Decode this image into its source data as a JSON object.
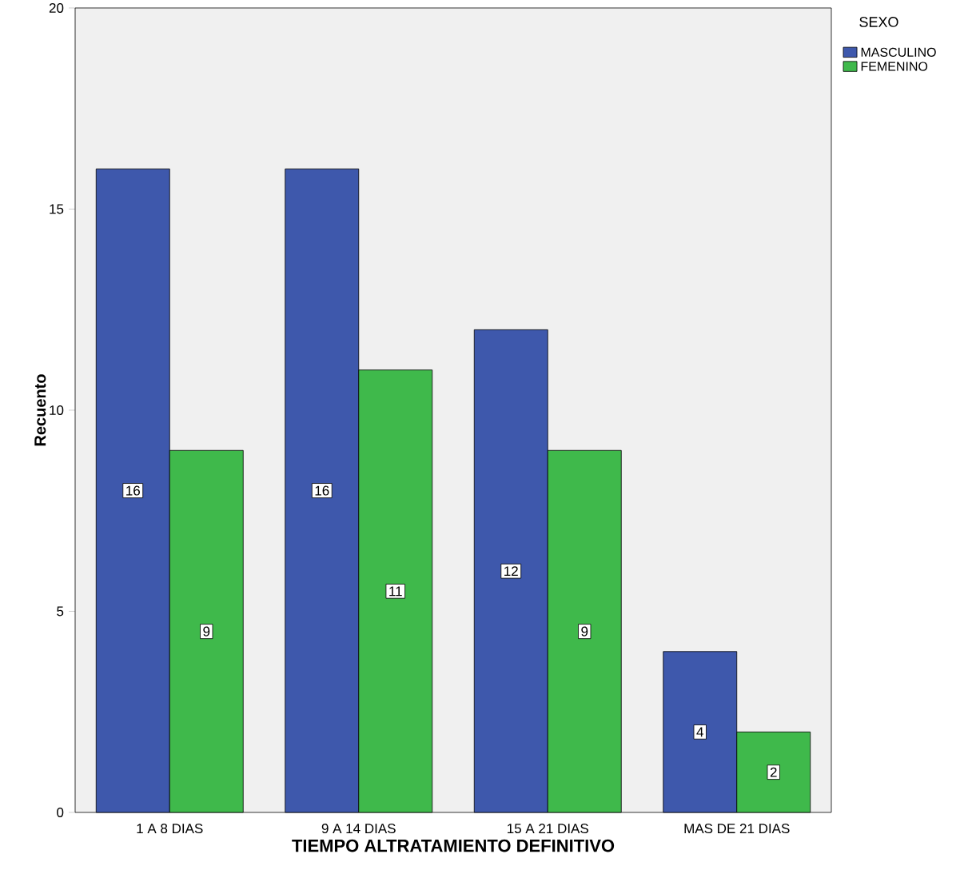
{
  "chart_data": {
    "type": "bar",
    "xlabel": "TIEMPO ALTRATAMIENTO DEFINITIVO",
    "ylabel": "Recuento",
    "legend_title": "SEXO",
    "categories": [
      "1 A 8 DIAS",
      "9 A 14 DIAS",
      "15 A 21 DIAS",
      "MAS DE 21 DIAS"
    ],
    "series": [
      {
        "name": "MASCULINO",
        "color": "#3e58ac",
        "values": [
          16,
          16,
          12,
          4
        ]
      },
      {
        "name": "FEMENINO",
        "color": "#3fb94b",
        "values": [
          9,
          11,
          9,
          2
        ]
      }
    ],
    "ylim": [
      0,
      20
    ],
    "yticks": [
      0,
      5,
      10,
      15,
      20
    ],
    "grid": false,
    "legend": "top right",
    "data_labels": true
  }
}
